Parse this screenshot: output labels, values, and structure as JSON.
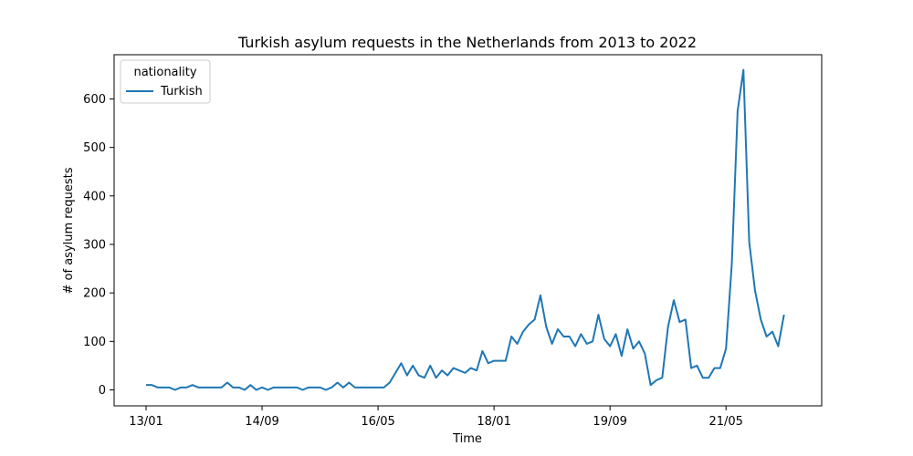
{
  "chart_data": {
    "type": "line",
    "title": "Turkish asylum requests in the Netherlands from 2013 to 2022",
    "xlabel": "Time",
    "ylabel": "# of asylum requests",
    "x_start": "2013-01",
    "x_step": "month",
    "xticks": [
      "13/01",
      "14/09",
      "16/05",
      "18/01",
      "19/09",
      "21/05"
    ],
    "ylim": [
      0,
      660
    ],
    "yticks": [
      0,
      100,
      200,
      300,
      400,
      500,
      600
    ],
    "grid": false,
    "legend": {
      "title": "nationality",
      "placement": "top-left"
    },
    "series": [
      {
        "name": "Turkish",
        "color": "#1f77b4",
        "values": [
          10,
          10,
          5,
          5,
          5,
          0,
          5,
          5,
          10,
          5,
          5,
          5,
          5,
          5,
          15,
          5,
          5,
          0,
          10,
          0,
          5,
          0,
          5,
          5,
          5,
          5,
          5,
          0,
          5,
          5,
          5,
          0,
          5,
          15,
          5,
          15,
          5,
          5,
          5,
          5,
          5,
          5,
          15,
          35,
          55,
          30,
          50,
          30,
          25,
          50,
          25,
          40,
          30,
          45,
          40,
          35,
          45,
          40,
          80,
          55,
          60,
          60,
          60,
          110,
          95,
          120,
          135,
          145,
          195,
          130,
          95,
          125,
          110,
          110,
          90,
          115,
          95,
          100,
          155,
          105,
          90,
          115,
          70,
          125,
          85,
          100,
          75,
          10,
          20,
          25,
          130,
          185,
          140,
          145,
          45,
          50,
          25,
          25,
          45,
          45,
          85,
          260,
          575,
          660,
          305,
          205,
          145,
          110,
          120,
          90,
          155
        ]
      }
    ]
  }
}
